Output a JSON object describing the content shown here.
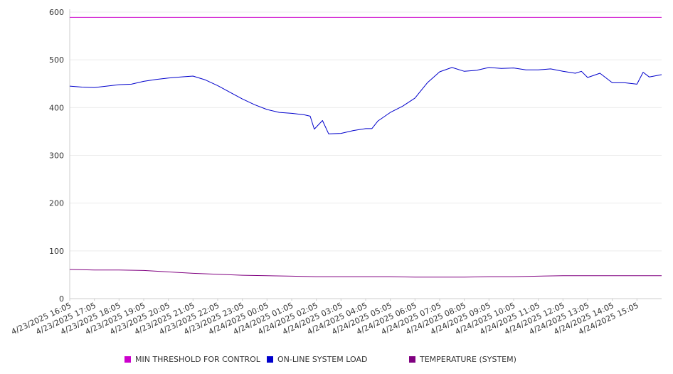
{
  "chart_data": {
    "type": "line",
    "title": "",
    "xlabel": "",
    "ylabel": "",
    "ylim": [
      0,
      600
    ],
    "yticks": [
      0,
      100,
      200,
      300,
      400,
      500,
      600
    ],
    "grid": "horizontal",
    "legend_position": "bottom",
    "x_tick_labels": [
      "4/23/2025 16:05",
      "4/23/2025 17:05",
      "4/23/2025 18:05",
      "4/23/2025 19:05",
      "4/23/2025 20:05",
      "4/23/2025 21:05",
      "4/23/2025 22:05",
      "4/23/2025 23:05",
      "4/24/2025 00:05",
      "4/24/2025 01:05",
      "4/24/2025 02:05",
      "4/24/2025 03:05",
      "4/24/2025 04:05",
      "4/24/2025 05:05",
      "4/24/2025 06:05",
      "4/24/2025 07:05",
      "4/24/2025 08:05",
      "4/24/2025 09:05",
      "4/24/2025 10:05",
      "4/24/2025 11:05",
      "4/24/2025 12:05",
      "4/24/2025 13:05",
      "4/24/2025 14:05",
      "4/24/2025 15:05"
    ],
    "x_range": [
      "4/23/2025 16:05",
      "4/24/2025 16:05"
    ],
    "series": [
      {
        "name": "MIN THRESHOLD FOR CONTROL",
        "color": "#cc00cc",
        "x": [
          "4/23/2025 16:05",
          "4/24/2025 16:05"
        ],
        "values": [
          589,
          589
        ]
      },
      {
        "name": "ON-LINE SYSTEM LOAD",
        "color": "#0000cc",
        "x": [
          "4/23/2025 16:05",
          "4/23/2025 16:35",
          "4/23/2025 17:05",
          "4/23/2025 17:35",
          "4/23/2025 18:05",
          "4/23/2025 18:35",
          "4/23/2025 19:05",
          "4/23/2025 19:35",
          "4/23/2025 20:05",
          "4/23/2025 20:35",
          "4/23/2025 21:05",
          "4/23/2025 21:35",
          "4/23/2025 22:05",
          "4/23/2025 22:35",
          "4/23/2025 23:05",
          "4/23/2025 23:35",
          "4/24/2025 00:05",
          "4/24/2025 00:35",
          "4/24/2025 01:05",
          "4/24/2025 01:35",
          "4/24/2025 01:50",
          "4/24/2025 02:00",
          "4/24/2025 02:20",
          "4/24/2025 02:35",
          "4/24/2025 03:05",
          "4/24/2025 03:35",
          "4/24/2025 04:05",
          "4/24/2025 04:20",
          "4/24/2025 04:35",
          "4/24/2025 05:05",
          "4/24/2025 05:35",
          "4/24/2025 06:05",
          "4/24/2025 06:35",
          "4/24/2025 07:05",
          "4/24/2025 07:35",
          "4/24/2025 08:05",
          "4/24/2025 08:35",
          "4/24/2025 09:05",
          "4/24/2025 09:35",
          "4/24/2025 10:05",
          "4/24/2025 10:35",
          "4/24/2025 11:05",
          "4/24/2025 11:35",
          "4/24/2025 12:05",
          "4/24/2025 12:35",
          "4/24/2025 12:50",
          "4/24/2025 13:05",
          "4/24/2025 13:35",
          "4/24/2025 14:05",
          "4/24/2025 14:35",
          "4/24/2025 15:05",
          "4/24/2025 15:20",
          "4/24/2025 15:35",
          "4/24/2025 16:05"
        ],
        "values": [
          445,
          443,
          442,
          445,
          448,
          449,
          455,
          459,
          462,
          464,
          466,
          458,
          446,
          432,
          418,
          406,
          396,
          390,
          388,
          385,
          382,
          355,
          373,
          345,
          346,
          352,
          356,
          356,
          372,
          390,
          403,
          420,
          452,
          475,
          484,
          476,
          478,
          484,
          482,
          483,
          479,
          479,
          481,
          476,
          472,
          476,
          463,
          472,
          452,
          452,
          449,
          474,
          464,
          469
        ]
      },
      {
        "name": "TEMPERATURE (SYSTEM)",
        "color": "#800080",
        "x": [
          "4/23/2025 16:05",
          "4/23/2025 17:05",
          "4/23/2025 18:05",
          "4/23/2025 19:05",
          "4/23/2025 20:05",
          "4/23/2025 21:05",
          "4/23/2025 22:05",
          "4/23/2025 23:05",
          "4/24/2025 00:05",
          "4/24/2025 01:05",
          "4/24/2025 02:05",
          "4/24/2025 03:05",
          "4/24/2025 04:05",
          "4/24/2025 05:05",
          "4/24/2025 06:05",
          "4/24/2025 07:05",
          "4/24/2025 08:05",
          "4/24/2025 09:05",
          "4/24/2025 10:05",
          "4/24/2025 11:05",
          "4/24/2025 12:05",
          "4/24/2025 13:05",
          "4/24/2025 14:05",
          "4/24/2025 15:05",
          "4/24/2025 16:05"
        ],
        "values": [
          61,
          60,
          60,
          59,
          56,
          53,
          51,
          49,
          48,
          47,
          46,
          46,
          46,
          46,
          45,
          45,
          45,
          46,
          46,
          47,
          48,
          48,
          48,
          48,
          48
        ]
      }
    ]
  }
}
